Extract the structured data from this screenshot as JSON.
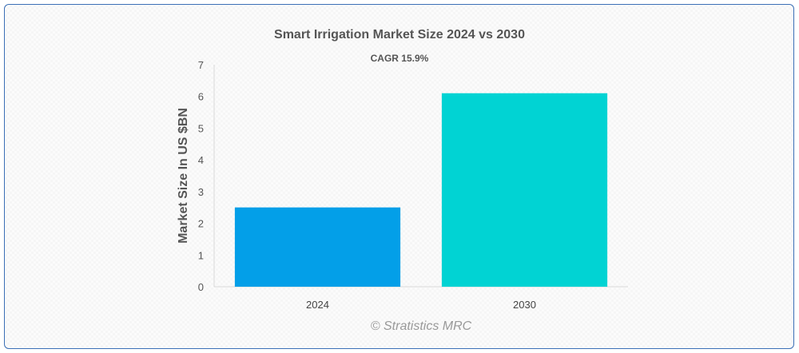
{
  "chart_data": {
    "type": "bar",
    "title": "Smart Irrigation Market Size 2024 vs 2030",
    "subtitle": "CAGR 15.9%",
    "xlabel": "",
    "ylabel": "Market Size In US $BN",
    "categories": [
      "2024",
      "2030"
    ],
    "values": [
      2.5,
      6.1
    ],
    "ylim": [
      0,
      7
    ],
    "yticks": [
      "0",
      "1",
      "2",
      "3",
      "4",
      "5",
      "6",
      "7"
    ],
    "colors": [
      "#039fe8",
      "#01d3d3"
    ],
    "grid": false,
    "legend": "none"
  },
  "credit": "© Stratistics MRC"
}
